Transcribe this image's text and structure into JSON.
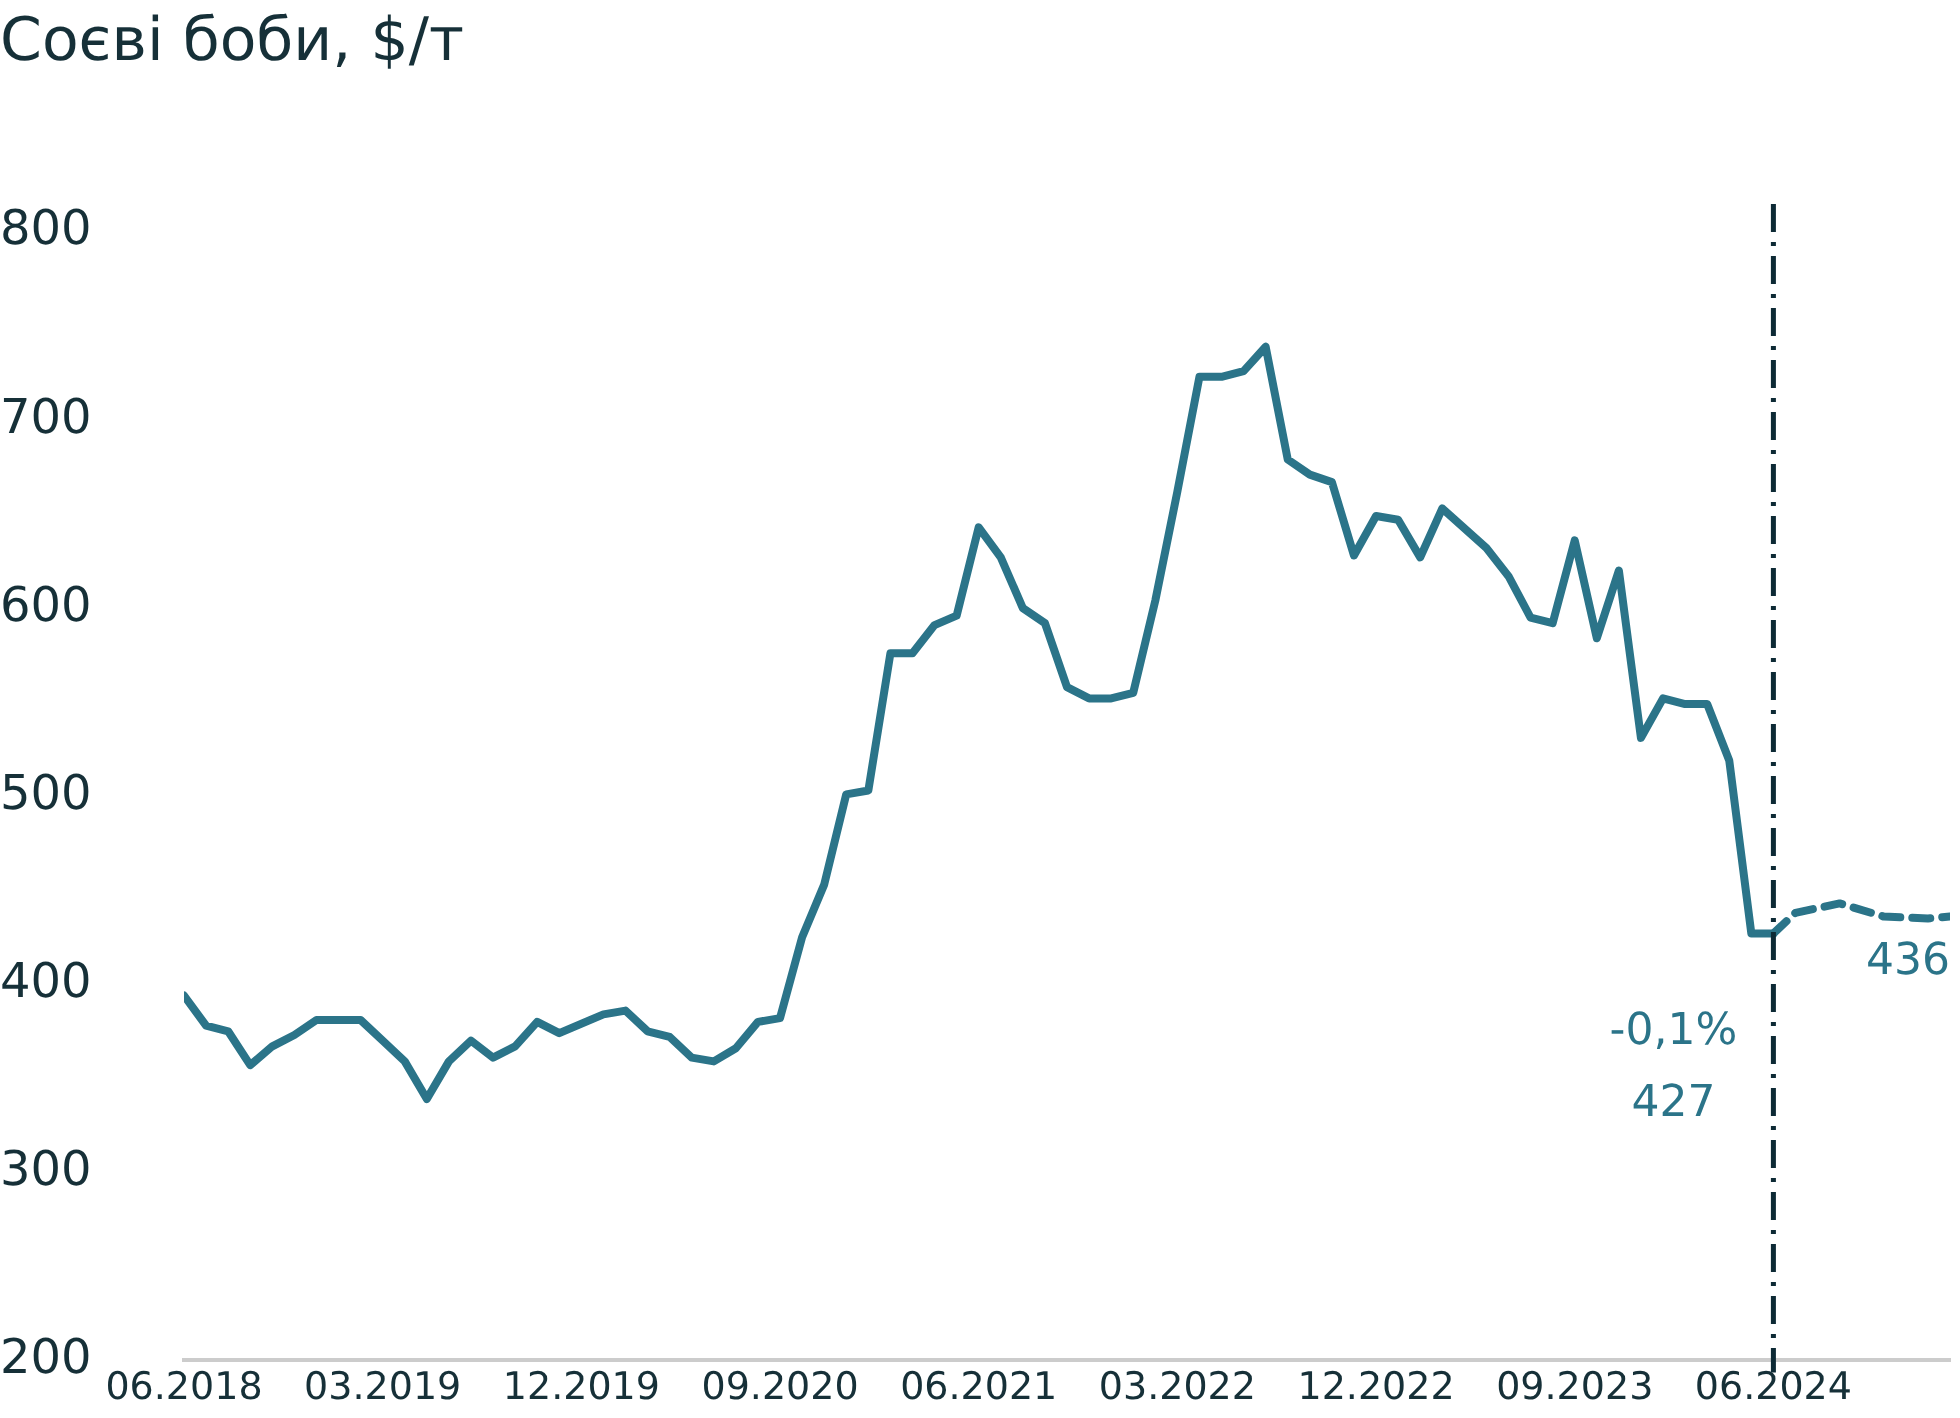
{
  "chart_data": {
    "type": "line",
    "title": "Соєві боби, $/т",
    "series": [
      {
        "color": "#2b7489",
        "line_style": "solid",
        "x": [
          "2018-06",
          "2018-07",
          "2018-08",
          "2018-09",
          "2018-10",
          "2018-11",
          "2018-12",
          "2019-01",
          "2019-02",
          "2019-03",
          "2019-04",
          "2019-05",
          "2019-06",
          "2019-07",
          "2019-08",
          "2019-09",
          "2019-10",
          "2019-11",
          "2020-01",
          "2020-02",
          "2020-03",
          "2020-04",
          "2020-05",
          "2020-06",
          "2020-07",
          "2020-08",
          "2020-09",
          "2020-10",
          "2020-11",
          "2020-12",
          "2021-01",
          "2021-02",
          "2021-03",
          "2021-04",
          "2021-05",
          "2021-06",
          "2021-07",
          "2021-08",
          "2021-09",
          "2021-10",
          "2021-11",
          "2021-12",
          "2022-01",
          "2022-02",
          "2022-03",
          "2022-04",
          "2022-05",
          "2022-06",
          "2022-07",
          "2022-08",
          "2022-09",
          "2022-10",
          "2022-11",
          "2022-12",
          "2023-01",
          "2023-02",
          "2023-03",
          "2023-05",
          "2023-06",
          "2023-07",
          "2023-08",
          "2023-09",
          "2023-10",
          "2023-11",
          "2023-12",
          "2024-01",
          "2024-02",
          "2024-03",
          "2024-04",
          "2024-05",
          "2024-06"
        ],
        "values": [
          394,
          378,
          375,
          357,
          367,
          373,
          381,
          381,
          381,
          370,
          359,
          339,
          359,
          370,
          361,
          367,
          380,
          374,
          384,
          386,
          375,
          372,
          361,
          359,
          366,
          380,
          382,
          425,
          453,
          501,
          503,
          576,
          576,
          591,
          596,
          643,
          627,
          600,
          592,
          558,
          552,
          552,
          555,
          604,
          662,
          723,
          723,
          726,
          739,
          679,
          671,
          667,
          628,
          649,
          647,
          627,
          653,
          632,
          617,
          595,
          592,
          636,
          584,
          620,
          531,
          552,
          549,
          549,
          519,
          427,
          427
        ]
      },
      {
        "color": "#2b7489",
        "line_style": "dashed",
        "x": [
          "2024-06",
          "2024-07",
          "2024-09",
          "2024-11",
          "2025-01",
          "2025-02"
        ],
        "values": [
          427,
          438,
          443,
          436,
          435,
          436
        ]
      }
    ],
    "xlim": [
      "2018-06",
      "2025-02"
    ],
    "xticks": [
      {
        "value": "2018-06",
        "label": "06.2018"
      },
      {
        "value": "2019-03",
        "label": "03.2019"
      },
      {
        "value": "2019-12",
        "label": "12.2019"
      },
      {
        "value": "2020-09",
        "label": "09.2020"
      },
      {
        "value": "2021-06",
        "label": "06.2021"
      },
      {
        "value": "2022-03",
        "label": "03.2022"
      },
      {
        "value": "2022-12",
        "label": "12.2022"
      },
      {
        "value": "2023-09",
        "label": "09.2023"
      },
      {
        "value": "2024-06",
        "label": "06.2024"
      }
    ],
    "ylim": [
      200,
      800
    ],
    "yticks": [
      200,
      300,
      400,
      500,
      600,
      700,
      800
    ],
    "grid": false,
    "legend": false,
    "marker": "none",
    "ref_lines": [
      {
        "axis": "x",
        "value": "2024-06",
        "color": "#0d2a35",
        "line_style": "dashed"
      }
    ],
    "annotations": [
      "-0,1%",
      "427",
      {
        "text": "436",
        "x": "2025-02",
        "y": 436
      }
    ]
  }
}
